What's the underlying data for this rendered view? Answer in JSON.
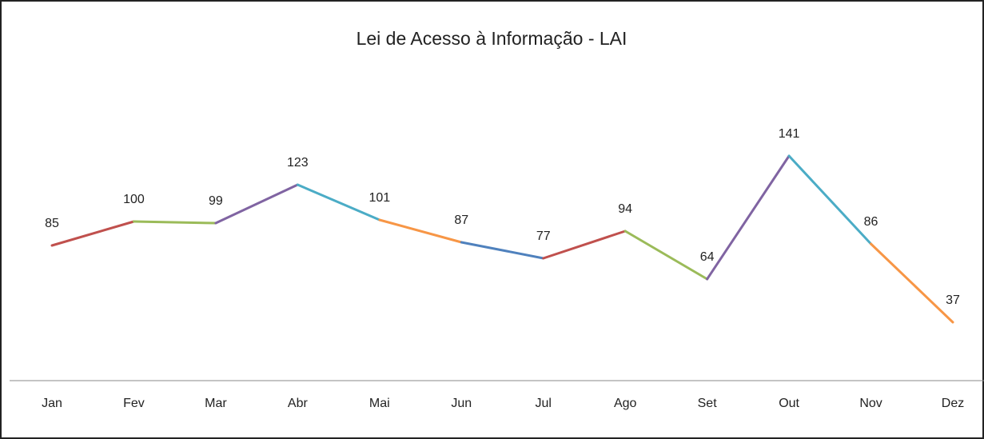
{
  "chart_data": {
    "type": "line",
    "title": "Lei de Acesso  à Informação - LAI",
    "categories": [
      "Jan",
      "Fev",
      "Mar",
      "Abr",
      "Mai",
      "Jun",
      "Jul",
      "Ago",
      "Set",
      "Out",
      "Nov",
      "Dez"
    ],
    "values": [
      85,
      100,
      99,
      123,
      101,
      87,
      77,
      94,
      64,
      141,
      86,
      37
    ],
    "segment_colors": [
      "#c0504d",
      "#9bbb59",
      "#8064a2",
      "#4bacc6",
      "#f79646",
      "#4f81bd",
      "#c0504d",
      "#9bbb59",
      "#8064a2",
      "#4bacc6",
      "#f79646"
    ],
    "ylim": [
      0,
      160
    ]
  }
}
